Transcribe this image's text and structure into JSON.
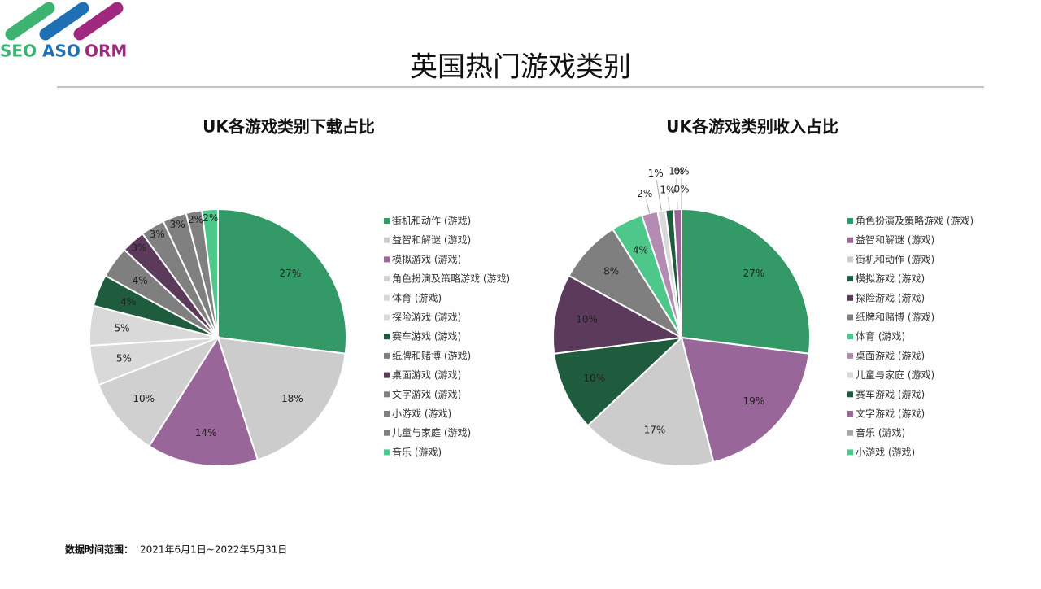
{
  "logo": [
    "SEO",
    "ASO",
    "ORM"
  ],
  "header": {
    "title": "英国热门游戏类别"
  },
  "footer": {
    "label": "数据时间范围：",
    "range": "2021年6月1日~2022年5月31日"
  },
  "chart_data": [
    {
      "type": "pie",
      "title": "UK各游戏类别下载占比",
      "categories": [
        "街机和动作 (游戏)",
        "益智和解谜 (游戏)",
        "模拟游戏 (游戏)",
        "角色扮演及策略游戏 (游戏)",
        "体育 (游戏)",
        "探险游戏 (游戏)",
        "赛车游戏 (游戏)",
        "纸牌和赌博 (游戏)",
        "桌面游戏 (游戏)",
        "文字游戏 (游戏)",
        "小游戏 (游戏)",
        "儿童与家庭 (游戏)",
        "音乐 (游戏)"
      ],
      "values": [
        27,
        18,
        14,
        10,
        5,
        5,
        4,
        4,
        3,
        3,
        3,
        2,
        2
      ],
      "value_labels": [
        "27%",
        "18%",
        "14%",
        "10%",
        "5%",
        "5%",
        "4%",
        "4%",
        "3%",
        "3%",
        "3%",
        "2%",
        "2%"
      ],
      "colors": [
        "#339966",
        "#cccccc",
        "#996699",
        "#d0d0d0",
        "#d9d9d9",
        "#d9d9d9",
        "#1f5c3d",
        "#7f7f7f",
        "#5c3a5c",
        "#808080",
        "#808080",
        "#808080",
        "#4dc78a"
      ]
    },
    {
      "type": "pie",
      "title": "UK各游戏类别收入占比",
      "categories": [
        "角色扮演及策略游戏 (游戏)",
        "益智和解谜 (游戏)",
        "街机和动作 (游戏)",
        "模拟游戏 (游戏)",
        "探险游戏 (游戏)",
        "纸牌和赌博 (游戏)",
        "体育 (游戏)",
        "桌面游戏 (游戏)",
        "儿童与家庭 (游戏)",
        "赛车游戏 (游戏)",
        "文字游戏 (游戏)",
        "音乐 (游戏)",
        "小游戏 (游戏)"
      ],
      "values": [
        27,
        19,
        17,
        10,
        10,
        8,
        4,
        2,
        1,
        1,
        1,
        0,
        0
      ],
      "value_labels": [
        "27%",
        "19%",
        "17%",
        "10%",
        "10%",
        "8%",
        "4%",
        "2%",
        "1%",
        "1%",
        "1%",
        "0%",
        "0%"
      ],
      "colors": [
        "#339966",
        "#996699",
        "#cccccc",
        "#1f5c3d",
        "#5c3a5c",
        "#7f7f7f",
        "#4dc78a",
        "#b38bb3",
        "#d9d9d9",
        "#1f5c3d",
        "#996699",
        "#a6a6a6",
        "#4dc78a"
      ]
    }
  ]
}
